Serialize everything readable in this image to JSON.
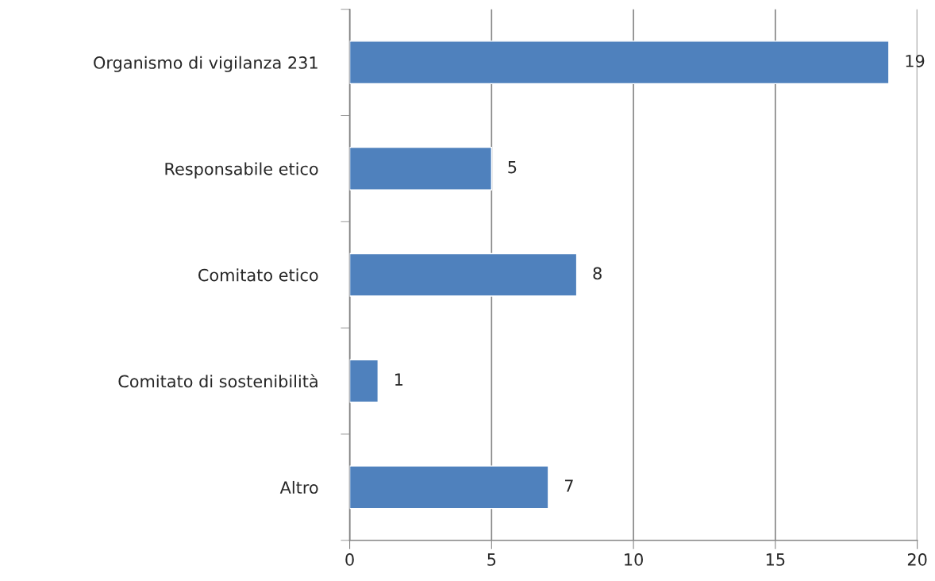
{
  "chart_data": {
    "type": "bar",
    "orientation": "horizontal",
    "categories": [
      "Organismo di vigilanza 231",
      "Responsabile etico",
      "Comitato etico",
      "Comitato di sostenibilità",
      "Altro"
    ],
    "values": [
      19,
      5,
      8,
      1,
      7
    ],
    "color": "#4f81bd",
    "xlim": [
      0,
      20
    ],
    "xticks": [
      0,
      5,
      10,
      15,
      20
    ],
    "grid": "x",
    "data_labels": true
  }
}
